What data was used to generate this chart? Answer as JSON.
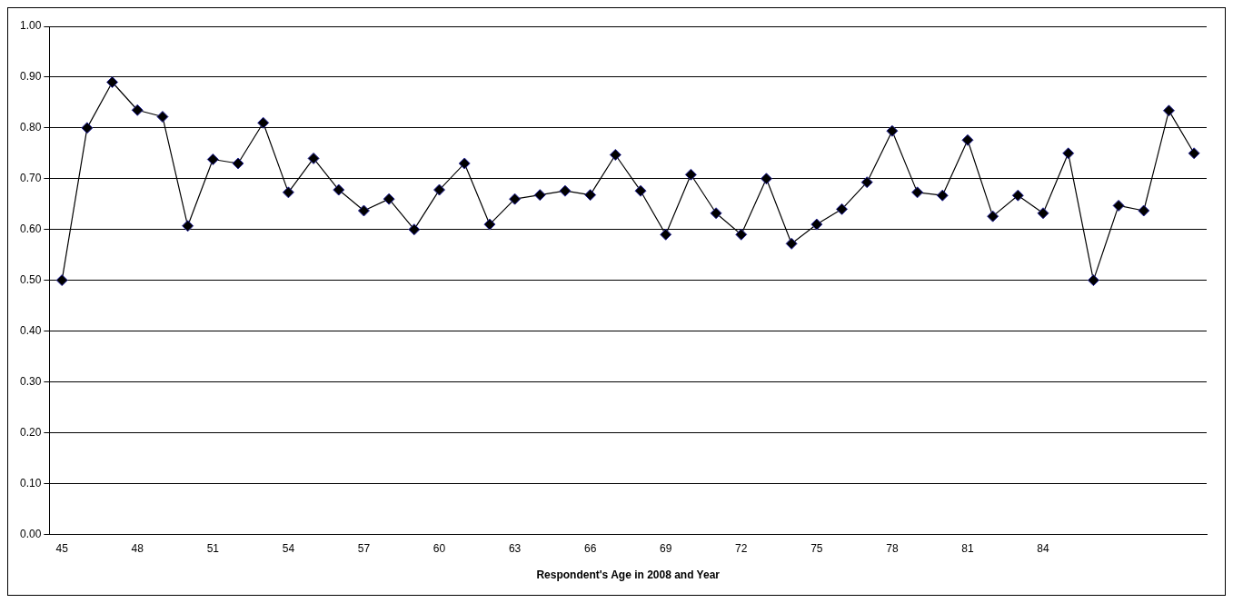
{
  "chart_data": {
    "type": "line",
    "xlabel": "Respondent's Age in 2008 and Year",
    "categories": [
      "45",
      null,
      null,
      "48",
      null,
      null,
      "51",
      null,
      null,
      "54",
      null,
      null,
      "57",
      null,
      null,
      "60",
      null,
      null,
      "63",
      null,
      null,
      "66",
      null,
      null,
      "69",
      null,
      null,
      "72",
      null,
      null,
      "75",
      null,
      null,
      "78",
      null,
      null,
      "81",
      null,
      null,
      "84",
      null,
      null,
      null,
      null,
      null,
      null
    ],
    "series": [
      {
        "color": "#000000",
        "values": [
          0.5,
          0.8,
          0.89,
          0.835,
          0.822,
          0.607,
          0.738,
          0.73,
          0.81,
          0.673,
          0.74,
          0.678,
          0.637,
          0.66,
          0.6,
          0.678,
          0.73,
          0.61,
          0.66,
          0.668,
          0.676,
          0.668,
          0.747,
          0.676,
          0.59,
          0.708,
          0.632,
          0.59,
          0.7,
          0.572,
          0.61,
          0.64,
          0.693,
          0.794,
          0.673,
          0.667,
          0.776,
          0.626,
          0.667,
          0.632,
          0.75,
          0.5,
          0.647,
          0.637,
          0.834,
          0.75
        ]
      }
    ],
    "ylim": [
      0,
      1
    ],
    "yticks": [
      {
        "value": 0,
        "label": "0.00"
      },
      {
        "value": 0.1,
        "label": "0.10"
      },
      {
        "value": 0.2,
        "label": "0.20"
      },
      {
        "value": 0.3,
        "label": "0.30"
      },
      {
        "value": 0.4,
        "label": "0.40"
      },
      {
        "value": 0.5,
        "label": "0.50"
      },
      {
        "value": 0.6,
        "label": "0.60"
      },
      {
        "value": 0.7,
        "label": "0.70"
      },
      {
        "value": 0.8,
        "label": "0.80"
      },
      {
        "value": 0.9,
        "label": "0.90"
      },
      {
        "value": 1,
        "label": "1.00"
      }
    ],
    "grid": "y",
    "legend": false,
    "marker": "diamond",
    "line_style": "solid"
  }
}
